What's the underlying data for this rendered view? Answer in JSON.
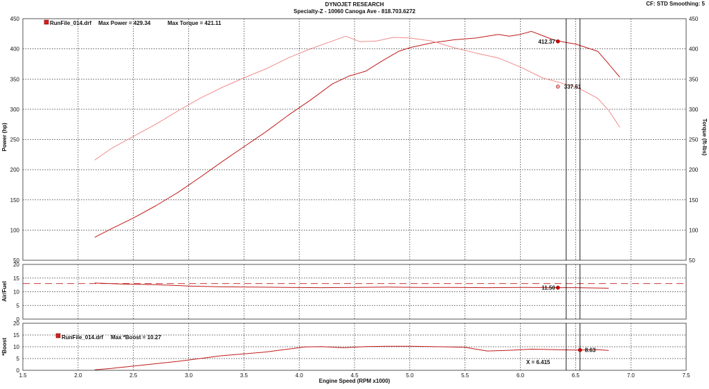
{
  "header": {
    "company": "DYNOJET RESEARCH",
    "shop": "Specialty-Z - 10060 Canoga Ave - 818.703.6272",
    "settings": "CF: STD  Smoothing: 5"
  },
  "colors": {
    "power": "#c01818",
    "torque": "#f08a8a",
    "afr": "#c01818",
    "afr_target": "#c01818",
    "boost": "#c01818",
    "grid": "#222222",
    "cursor": "#000000"
  },
  "chart_data": [
    {
      "type": "line",
      "panel": "power-torque",
      "legend": {
        "file": "RunFile_014.drf",
        "power_label": "Max Power = 429.34",
        "torque_label": "Max Torque = 421.11"
      },
      "ylabel_left": "Power (hp)",
      "ylabel_right": "Torque (ft-lbs)",
      "xlim": [
        1.5,
        7.5
      ],
      "ylim": [
        50,
        450
      ],
      "yticks": [
        50,
        100,
        150,
        200,
        250,
        300,
        350,
        400,
        450
      ],
      "series": [
        {
          "name": "Power",
          "x": [
            2.15,
            2.3,
            2.5,
            2.7,
            2.9,
            3.1,
            3.3,
            3.5,
            3.7,
            3.9,
            4.1,
            4.3,
            4.45,
            4.6,
            4.75,
            4.9,
            5.0,
            5.2,
            5.4,
            5.6,
            5.8,
            5.9,
            6.0,
            6.1,
            6.2,
            6.3,
            6.4,
            6.5,
            6.6,
            6.7,
            6.8,
            6.9
          ],
          "y": [
            88,
            102,
            120,
            140,
            162,
            187,
            213,
            238,
            263,
            290,
            315,
            342,
            355,
            363,
            380,
            396,
            402,
            410,
            415,
            418,
            424,
            421,
            424,
            429,
            422,
            415,
            411,
            408,
            402,
            396,
            375,
            353
          ]
        },
        {
          "name": "Torque",
          "x": [
            2.15,
            2.3,
            2.5,
            2.7,
            2.9,
            3.1,
            3.3,
            3.5,
            3.7,
            3.9,
            4.1,
            4.3,
            4.42,
            4.55,
            4.7,
            4.85,
            5.0,
            5.2,
            5.4,
            5.6,
            5.8,
            6.0,
            6.2,
            6.4,
            6.5,
            6.6,
            6.7,
            6.8,
            6.9
          ],
          "y": [
            216,
            235,
            255,
            275,
            297,
            318,
            336,
            352,
            367,
            385,
            400,
            413,
            421,
            412,
            413,
            419,
            418,
            413,
            402,
            393,
            385,
            370,
            352,
            342,
            337,
            328,
            318,
            298,
            270
          ]
        }
      ],
      "markers": [
        {
          "series": "Power",
          "x": 6.34,
          "y": 412.37,
          "label": "412.37"
        },
        {
          "series": "Torque",
          "x": 6.34,
          "y": 337.61,
          "label": "337.61"
        }
      ]
    },
    {
      "type": "line",
      "panel": "air-fuel",
      "ylabel": "Air/Fuel",
      "xlim": [
        1.5,
        7.5
      ],
      "ylim": [
        0,
        20
      ],
      "yticks": [
        0,
        5,
        10,
        15,
        20
      ],
      "target": 13,
      "series": [
        {
          "name": "Air/Fuel",
          "x": [
            2.15,
            2.4,
            2.7,
            3.0,
            3.3,
            3.6,
            3.9,
            4.2,
            4.5,
            4.8,
            5.1,
            5.4,
            5.7,
            6.0,
            6.3,
            6.5,
            6.8
          ],
          "y": [
            13.2,
            12.8,
            12.6,
            12.1,
            11.8,
            11.7,
            11.6,
            11.5,
            11.6,
            11.7,
            11.6,
            11.6,
            11.5,
            11.6,
            11.5,
            11.5,
            11.3
          ]
        }
      ],
      "markers": [
        {
          "series": "Air/Fuel",
          "x": 6.34,
          "y": 11.5,
          "label": "11.50"
        }
      ]
    },
    {
      "type": "line",
      "panel": "boost",
      "legend": {
        "file": "RunFile_014.drf",
        "label": "Max *Boost = 10.27"
      },
      "ylabel": "*Boost",
      "xlabel": "Engine Speed (RPM x1000)",
      "xlim": [
        1.5,
        7.5
      ],
      "ylim": [
        0,
        20
      ],
      "yticks": [
        0,
        5,
        10,
        15,
        20
      ],
      "xticks": [
        "1.5",
        "2.0",
        "2.5",
        "3.0",
        "3.5",
        "4.0",
        "4.5",
        "5.0",
        "5.5",
        "6.0",
        "6.5",
        "7.0",
        "7.5"
      ],
      "series": [
        {
          "name": "*Boost",
          "x": [
            2.15,
            2.3,
            2.5,
            2.7,
            2.9,
            3.1,
            3.3,
            3.5,
            3.7,
            3.9,
            4.05,
            4.2,
            4.4,
            4.6,
            4.8,
            5.0,
            5.2,
            5.5,
            5.7,
            5.9,
            6.1,
            6.3,
            6.5,
            6.7,
            6.8
          ],
          "y": [
            0.2,
            0.8,
            1.8,
            2.8,
            3.8,
            5.0,
            6.2,
            7.0,
            7.8,
            9.0,
            9.9,
            10.1,
            9.6,
            10.1,
            10.2,
            10.2,
            10.1,
            9.8,
            8.2,
            8.5,
            9.0,
            8.8,
            8.6,
            8.8,
            8.4
          ]
        }
      ],
      "markers": [
        {
          "series": "*Boost",
          "x": 6.54,
          "y": 8.63,
          "label": "8.63"
        }
      ],
      "cursor_label": "X = 6.415"
    }
  ]
}
